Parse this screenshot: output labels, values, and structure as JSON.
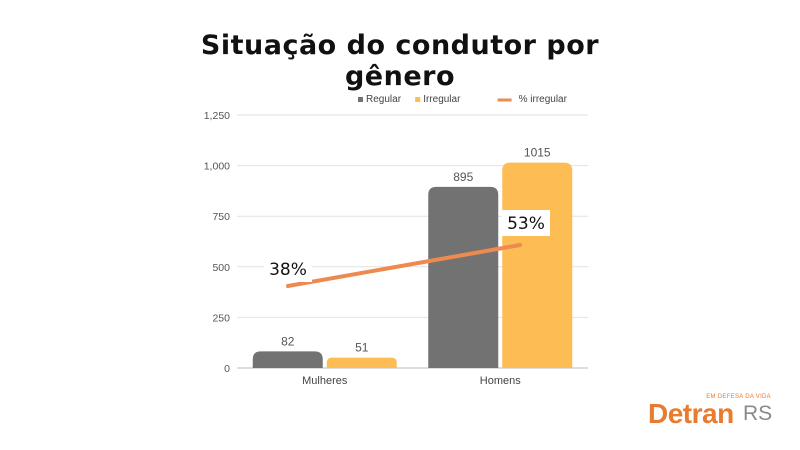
{
  "chart_data": {
    "type": "bar",
    "title": "Situação do condutor por gênero",
    "categories": [
      "Mulheres",
      "Homens"
    ],
    "series": [
      {
        "name": "Regular",
        "values": [
          82,
          895
        ],
        "color": "#727272"
      },
      {
        "name": "Irregular",
        "values": [
          51,
          1015
        ],
        "color": "#fdbc54"
      }
    ],
    "line_series": {
      "name": "% irregular",
      "values": [
        38,
        53
      ],
      "labels": [
        "38%",
        "53%"
      ],
      "color": "#ee8a4f"
    },
    "yticks": [
      "0",
      "250",
      "500",
      "750",
      "1,000",
      "1,250"
    ],
    "ylim": [
      0,
      1250
    ],
    "grid": true,
    "legend_position": "top-right"
  },
  "logo": {
    "tagline": "EM DEFESA DA VIDA",
    "brand": "Detran",
    "suffix": "RS",
    "color": "#e87b2e"
  }
}
